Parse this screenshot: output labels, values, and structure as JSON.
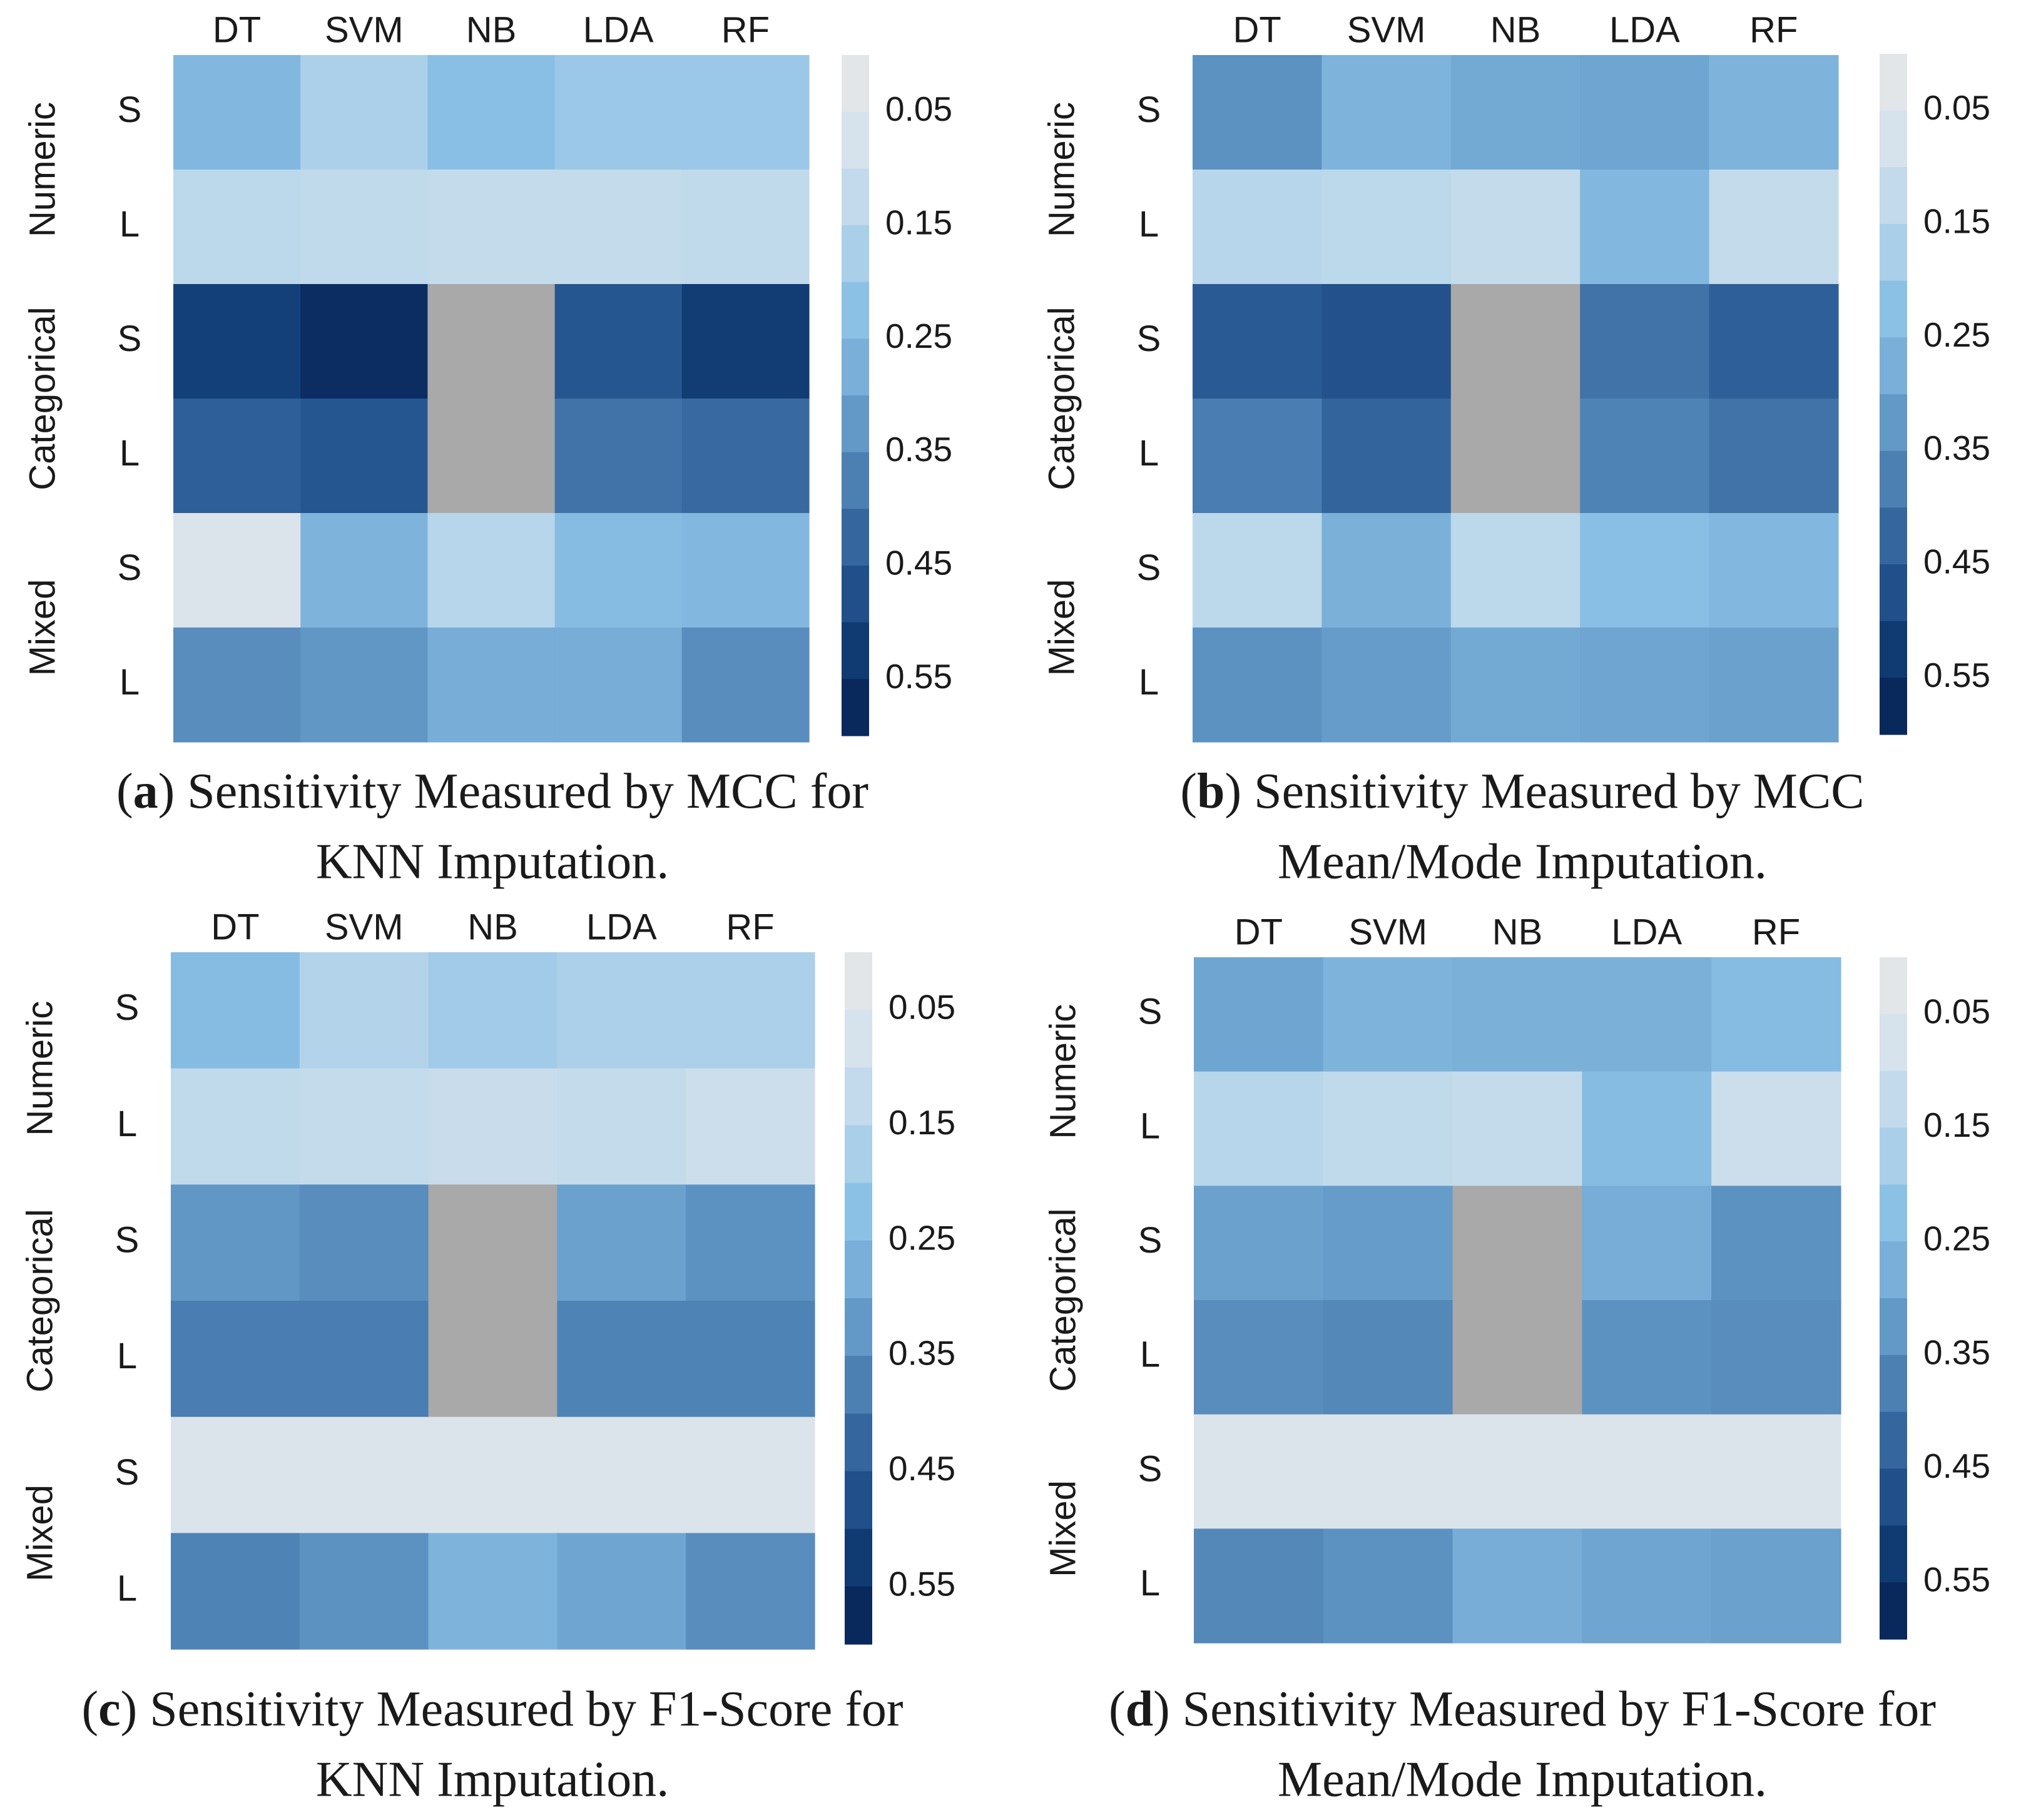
{
  "chart_data": [
    {
      "type": "heatmap",
      "panel_letter": "a",
      "caption_line1": "Sensitivity Measured by MCC for",
      "caption_line2": "KNN Imputation.",
      "xlabels": [
        "DT",
        "SVM",
        "NB",
        "LDA",
        "RF"
      ],
      "groups": [
        "Numeric",
        "Categorical",
        "Mixed"
      ],
      "ylabels": [
        "S",
        "L",
        "S",
        "L",
        "S",
        "L"
      ],
      "colorbar_ticks": [
        "0.05",
        "0.15",
        "0.25",
        "0.35",
        "0.45",
        "0.55"
      ],
      "vmin": 0.0,
      "vmax": 0.6,
      "values": [
        [
          0.25,
          0.17,
          0.23,
          0.2,
          0.2
        ],
        [
          0.14,
          0.13,
          0.12,
          0.12,
          0.13
        ],
        [
          0.51,
          0.56,
          null,
          0.46,
          0.52
        ],
        [
          0.44,
          0.46,
          null,
          0.4,
          0.42
        ],
        [
          0.05,
          0.26,
          0.15,
          0.24,
          0.25
        ],
        [
          0.35,
          0.33,
          0.28,
          0.28,
          0.35
        ]
      ]
    },
    {
      "type": "heatmap",
      "panel_letter": "b",
      "caption_line1": "Sensitivity Measured by MCC",
      "caption_line2": "Mean/Mode Imputation.",
      "xlabels": [
        "DT",
        "SVM",
        "NB",
        "LDA",
        "RF"
      ],
      "groups": [
        "Numeric",
        "Categorical",
        "Mixed"
      ],
      "ylabels": [
        "S",
        "L",
        "S",
        "L",
        "S",
        "L"
      ],
      "colorbar_ticks": [
        "0.05",
        "0.15",
        "0.25",
        "0.35",
        "0.45",
        "0.55"
      ],
      "vmin": 0.0,
      "vmax": 0.6,
      "values": [
        [
          0.34,
          0.26,
          0.29,
          0.3,
          0.26
        ],
        [
          0.15,
          0.14,
          0.12,
          0.25,
          0.12
        ],
        [
          0.45,
          0.47,
          null,
          0.4,
          0.44
        ],
        [
          0.38,
          0.43,
          null,
          0.37,
          0.4
        ],
        [
          0.14,
          0.27,
          0.14,
          0.23,
          0.25
        ],
        [
          0.34,
          0.32,
          0.29,
          0.3,
          0.31
        ]
      ]
    },
    {
      "type": "heatmap",
      "panel_letter": "c",
      "caption_line1": "Sensitivity Measured by F1-Score for",
      "caption_line2": "KNN Imputation.",
      "xlabels": [
        "DT",
        "SVM",
        "NB",
        "LDA",
        "RF"
      ],
      "groups": [
        "Numeric",
        "Categorical",
        "Mixed"
      ],
      "ylabels": [
        "S",
        "L",
        "S",
        "L",
        "S",
        "L"
      ],
      "colorbar_ticks": [
        "0.05",
        "0.15",
        "0.25",
        "0.35",
        "0.45",
        "0.55"
      ],
      "vmin": 0.0,
      "vmax": 0.6,
      "values": [
        [
          0.24,
          0.16,
          0.19,
          0.17,
          0.17
        ],
        [
          0.13,
          0.12,
          0.11,
          0.12,
          0.1
        ],
        [
          0.33,
          0.35,
          null,
          0.31,
          0.34
        ],
        [
          0.38,
          0.38,
          null,
          0.37,
          0.37
        ],
        [
          0.05,
          0.05,
          0.05,
          0.05,
          0.05
        ],
        [
          0.37,
          0.34,
          0.26,
          0.3,
          0.35
        ]
      ]
    },
    {
      "type": "heatmap",
      "panel_letter": "d",
      "caption_line1": "Sensitivity Measured by F1-Score for",
      "caption_line2": "Mean/Mode Imputation.",
      "xlabels": [
        "DT",
        "SVM",
        "NB",
        "LDA",
        "RF"
      ],
      "groups": [
        "Numeric",
        "Categorical",
        "Mixed"
      ],
      "ylabels": [
        "S",
        "L",
        "S",
        "L",
        "S",
        "L"
      ],
      "colorbar_ticks": [
        "0.05",
        "0.15",
        "0.25",
        "0.35",
        "0.45",
        "0.55"
      ],
      "vmin": 0.0,
      "vmax": 0.6,
      "values": [
        [
          0.3,
          0.26,
          0.27,
          0.27,
          0.24
        ],
        [
          0.15,
          0.13,
          0.12,
          0.24,
          0.1
        ],
        [
          0.31,
          0.32,
          null,
          0.28,
          0.34
        ],
        [
          0.35,
          0.36,
          null,
          0.34,
          0.35
        ],
        [
          0.05,
          0.05,
          0.05,
          0.05,
          0.05
        ],
        [
          0.36,
          0.34,
          0.28,
          0.3,
          0.31
        ]
      ]
    }
  ],
  "colors": {
    "missing": "#a9a9a9",
    "colormap": [
      "#e8e8e8",
      "#d6e2ec",
      "#b8d6eb",
      "#8cc1e6",
      "#6fa6d1",
      "#4c80b3",
      "#2a5a94",
      "#0f3a72",
      "#061f4f"
    ]
  }
}
